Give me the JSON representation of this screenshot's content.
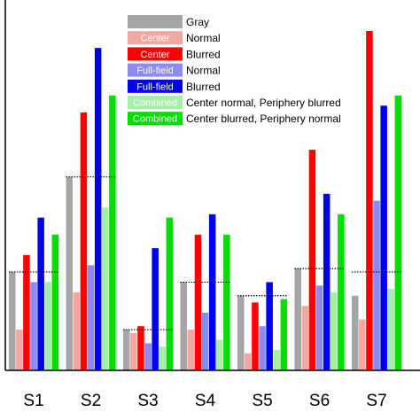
{
  "chart_data": {
    "type": "bar",
    "categories": [
      "S1",
      "S2",
      "S3",
      "S4",
      "S5",
      "S6",
      "S7"
    ],
    "ylim": [
      0,
      100
    ],
    "legend_placement": "top-center",
    "grid": false,
    "series": [
      {
        "name": "Gray",
        "swatch_text": "",
        "color": "#a6a6a6",
        "values": [
          29,
          57,
          12,
          26,
          22,
          30,
          22
        ]
      },
      {
        "name": "Normal",
        "swatch_text": "Center",
        "color": "#f4a6a0",
        "values": [
          12,
          23,
          11,
          12,
          5,
          19,
          15
        ]
      },
      {
        "name": "Blurred",
        "swatch_text": "Center",
        "color": "#ff0000",
        "values": [
          34,
          76,
          13,
          40,
          20,
          65,
          100
        ]
      },
      {
        "name": "Normal",
        "swatch_text": "Full-field",
        "color": "#8c8cf0",
        "values": [
          26,
          31,
          8,
          17,
          13,
          25,
          50
        ]
      },
      {
        "name": "Blurred",
        "swatch_text": "Full-field",
        "color": "#0000ee",
        "values": [
          45,
          95,
          36,
          46,
          26,
          52,
          78
        ]
      },
      {
        "name": "Center normal, Periphery blurred",
        "swatch_text": "Combined",
        "color": "#a6f0a6",
        "values": [
          26,
          48,
          7,
          9,
          6,
          23,
          24
        ]
      },
      {
        "name": "Center blurred, Periphery normal",
        "swatch_text": "Combined",
        "color": "#00dd00",
        "values": [
          40,
          81,
          45,
          40,
          21,
          46,
          81
        ]
      }
    ],
    "reference_lines": [
      29,
      57,
      12,
      26,
      22,
      30,
      29
    ]
  },
  "colors": {
    "axis": "#000000",
    "reference_line": "#000000"
  }
}
